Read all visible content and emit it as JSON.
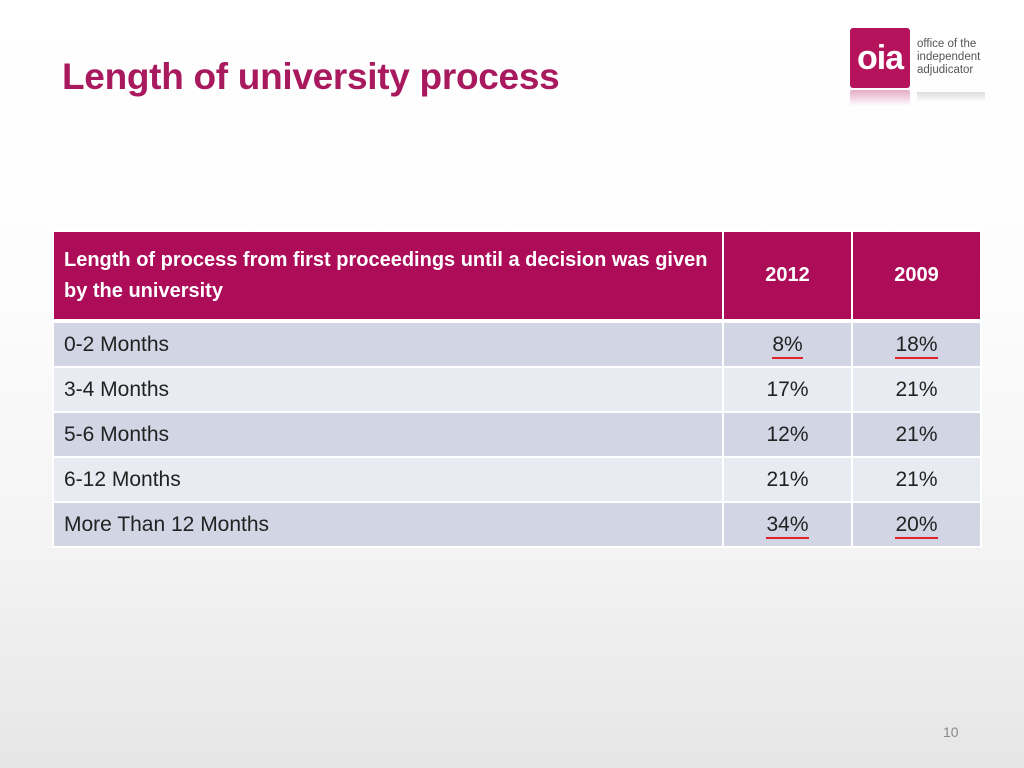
{
  "slide": {
    "title": "Length of university process",
    "page_number": "10"
  },
  "logo": {
    "mark": "oia",
    "text_lines": [
      "office of the",
      "independent",
      "adjudicator"
    ]
  },
  "table": {
    "header_label": "Length of process from first proceedings until a decision was given by the university",
    "years": [
      "2012",
      "2009"
    ],
    "rows": [
      {
        "label": "0-2 Months",
        "values": [
          "8%",
          "18%"
        ],
        "underline": [
          true,
          true
        ]
      },
      {
        "label": "3-4 Months",
        "values": [
          "17%",
          "21%"
        ],
        "underline": [
          false,
          false
        ]
      },
      {
        "label": "5-6 Months",
        "values": [
          "12%",
          "21%"
        ],
        "underline": [
          false,
          false
        ]
      },
      {
        "label": "6-12 Months",
        "values": [
          "21%",
          "21%"
        ],
        "underline": [
          false,
          false
        ]
      },
      {
        "label": "More Than 12 Months",
        "values": [
          "34%",
          "20%"
        ],
        "underline": [
          true,
          true
        ]
      }
    ]
  },
  "colors": {
    "brand": "#a8195e",
    "header_bg": "#ac0c58",
    "row_odd": "#d1d5e4",
    "row_even": "#e9ebf2",
    "underline": "#e0222a"
  }
}
